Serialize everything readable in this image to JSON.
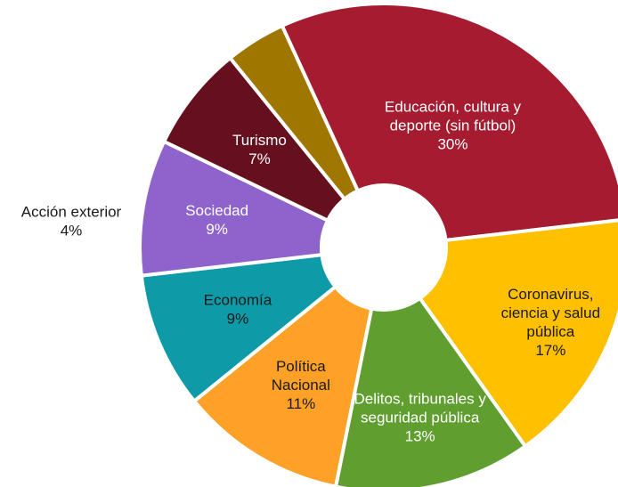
{
  "chart_data": {
    "type": "pie",
    "variant": "donut",
    "title": "",
    "slices": [
      {
        "label_lines": [
          "Educación, cultura y",
          "deporte (sin fútbol)"
        ],
        "value_label": "30%",
        "value": 30,
        "color": "#a51c30",
        "text_color": "#ffffff"
      },
      {
        "label_lines": [
          "Coronavirus,",
          "ciencia y salud",
          "pública"
        ],
        "value_label": "17%",
        "value": 17,
        "color": "#ffc000",
        "text_color": "#1a1a1a"
      },
      {
        "label_lines": [
          "Delitos, tribunales y",
          "seguridad pública"
        ],
        "value_label": "13%",
        "value": 13,
        "color": "#5f9e2f",
        "text_color": "#ffffff"
      },
      {
        "label_lines": [
          "Política",
          "Nacional"
        ],
        "value_label": "11%",
        "value": 11,
        "color": "#ffa126",
        "text_color": "#1a1a1a"
      },
      {
        "label_lines": [
          "Economía"
        ],
        "value_label": "9%",
        "value": 9,
        "color": "#0e9aa6",
        "text_color": "#1a1a1a"
      },
      {
        "label_lines": [
          "Sociedad"
        ],
        "value_label": "9%",
        "value": 9,
        "color": "#8e63cc",
        "text_color": "#ffffff"
      },
      {
        "label_lines": [
          "Turismo"
        ],
        "value_label": "7%",
        "value": 7,
        "color": "#66101f",
        "text_color": "#ffffff"
      },
      {
        "label_lines": [
          "Acción exterior"
        ],
        "value_label": "4%",
        "value": 4,
        "color": "#9e7600",
        "text_color": "#1a1a1a",
        "label_outside": true
      }
    ]
  }
}
